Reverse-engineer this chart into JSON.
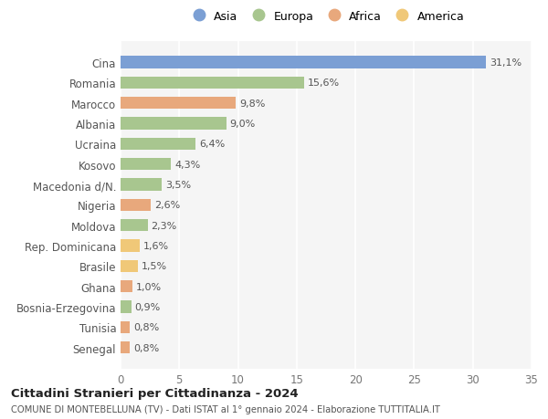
{
  "categories": [
    "Cina",
    "Romania",
    "Marocco",
    "Albania",
    "Ucraina",
    "Kosovo",
    "Macedonia d/N.",
    "Nigeria",
    "Moldova",
    "Rep. Dominicana",
    "Brasile",
    "Ghana",
    "Bosnia-Erzegovina",
    "Tunisia",
    "Senegal"
  ],
  "values": [
    31.1,
    15.6,
    9.8,
    9.0,
    6.4,
    4.3,
    3.5,
    2.6,
    2.3,
    1.6,
    1.5,
    1.0,
    0.9,
    0.8,
    0.8
  ],
  "colors": [
    "#7b9fd4",
    "#a8c68f",
    "#e8a87c",
    "#a8c68f",
    "#a8c68f",
    "#a8c68f",
    "#a8c68f",
    "#e8a87c",
    "#a8c68f",
    "#f0c878",
    "#f0c878",
    "#e8a87c",
    "#a8c68f",
    "#e8a87c",
    "#e8a87c"
  ],
  "labels": [
    "31,1%",
    "15,6%",
    "9,8%",
    "9,0%",
    "6,4%",
    "4,3%",
    "3,5%",
    "2,6%",
    "2,3%",
    "1,6%",
    "1,5%",
    "1,0%",
    "0,9%",
    "0,8%",
    "0,8%"
  ],
  "legend": [
    {
      "label": "Asia",
      "color": "#7b9fd4"
    },
    {
      "label": "Europa",
      "color": "#a8c68f"
    },
    {
      "label": "Africa",
      "color": "#e8a87c"
    },
    {
      "label": "America",
      "color": "#f0c878"
    }
  ],
  "xlim": [
    0,
    35
  ],
  "xticks": [
    0,
    5,
    10,
    15,
    20,
    25,
    30,
    35
  ],
  "title": "Cittadini Stranieri per Cittadinanza - 2024",
  "subtitle": "COMUNE DI MONTEBELLUNA (TV) - Dati ISTAT al 1° gennaio 2024 - Elaborazione TUTTITALIA.IT",
  "background_color": "#ffffff",
  "plot_bg_color": "#f5f5f5",
  "grid_color": "#ffffff",
  "bar_height": 0.6
}
